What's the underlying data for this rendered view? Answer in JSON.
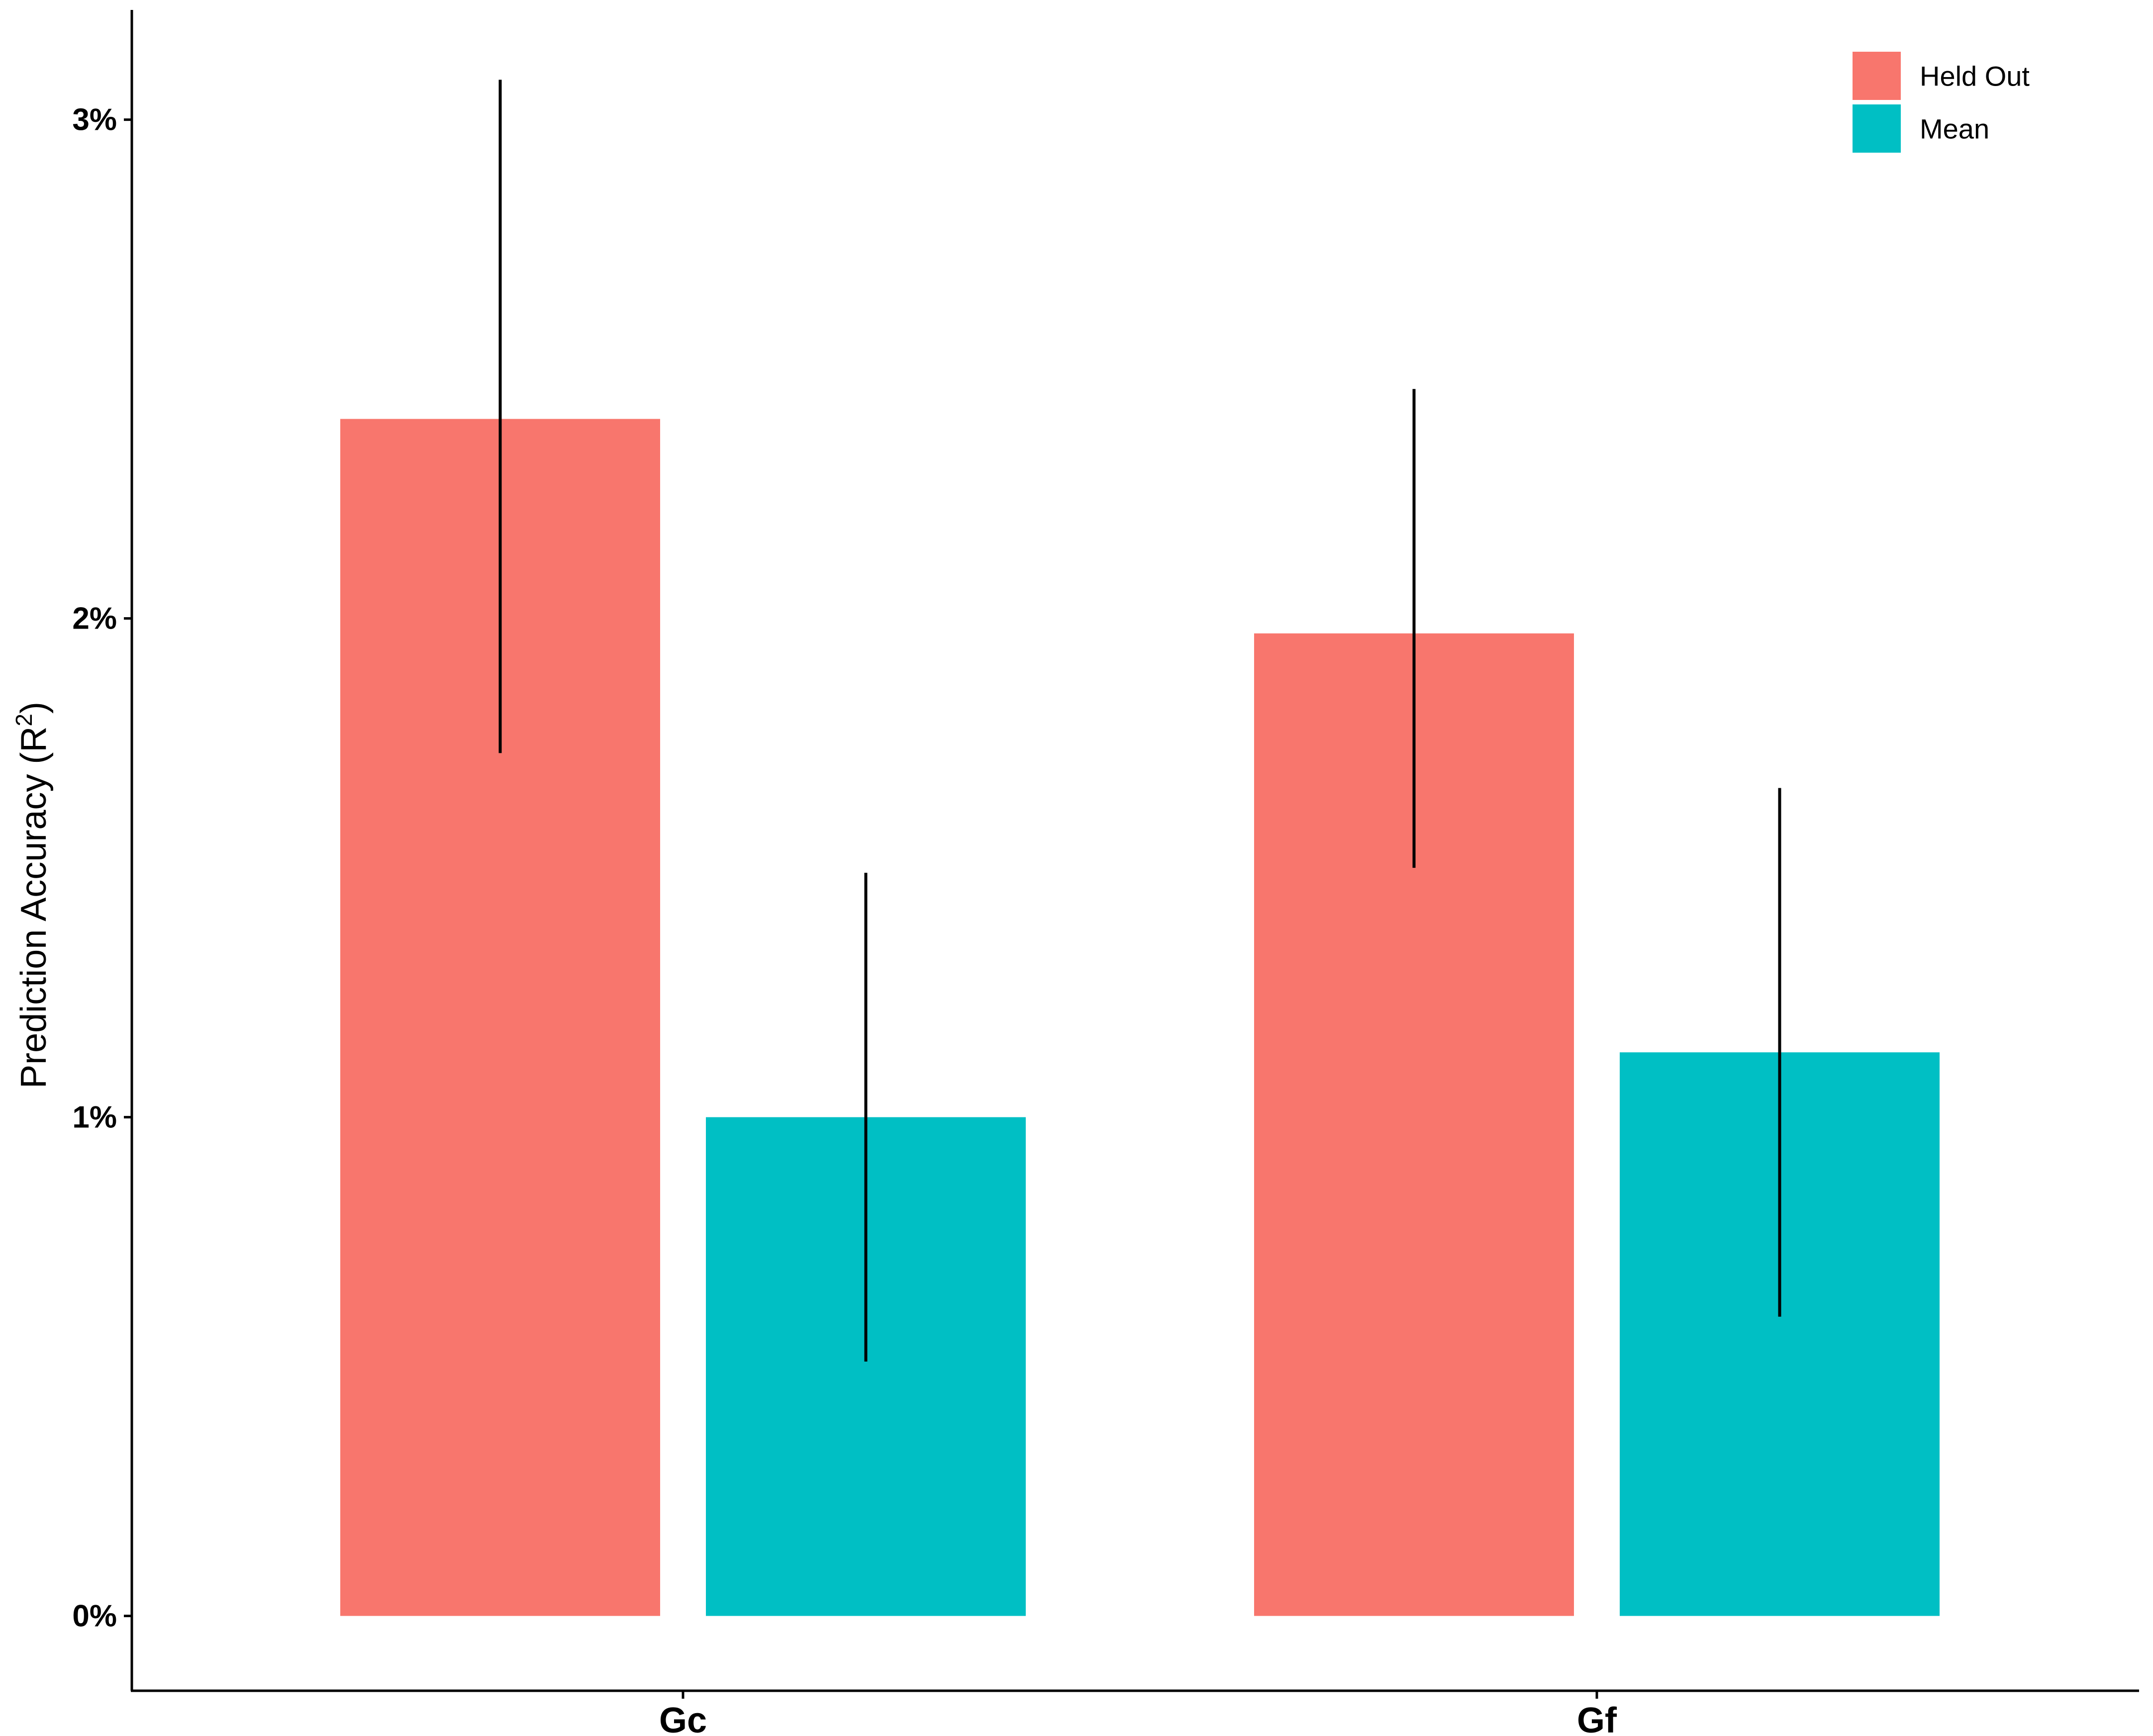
{
  "chart_data": {
    "type": "bar",
    "categories": [
      "Gc",
      "Gf"
    ],
    "series": [
      {
        "name": "Held Out",
        "color": "#F8766D",
        "values": [
          2.4,
          1.97
        ],
        "error_low": [
          1.73,
          1.5
        ],
        "error_high": [
          3.08,
          2.46
        ]
      },
      {
        "name": "Mean",
        "color": "#00BFC4",
        "values": [
          1.0,
          1.13
        ],
        "error_low": [
          0.51,
          0.6
        ],
        "error_high": [
          1.49,
          1.66
        ]
      }
    ],
    "ylabel": "Prediction Accuracy (R",
    "ylabel_superscript": "2",
    "ylabel_close": ")",
    "ylim": [
      -0.15,
      3.22
    ],
    "yticks": [
      0,
      1,
      2,
      3
    ],
    "ytick_labels": [
      "0%",
      "1%",
      "2%",
      "3%"
    ],
    "legend_position": "top-right",
    "grid": false
  }
}
